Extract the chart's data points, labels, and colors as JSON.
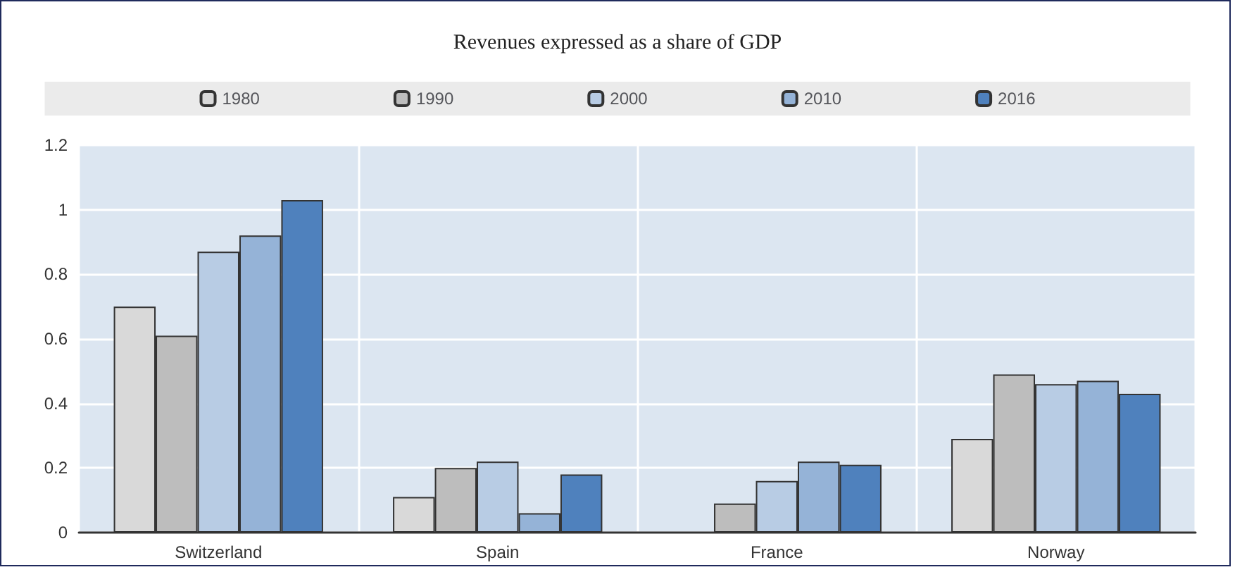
{
  "chart_data": {
    "type": "bar",
    "title": "Revenues expressed as a share of GDP",
    "categories": [
      "Switzerland",
      "Spain",
      "France",
      "Norway"
    ],
    "series": [
      {
        "name": "1980",
        "color": "#d9d9d9",
        "values": [
          0.7,
          0.11,
          null,
          0.29
        ]
      },
      {
        "name": "1990",
        "color": "#bdbdbd",
        "values": [
          0.61,
          0.2,
          0.09,
          0.49
        ]
      },
      {
        "name": "2000",
        "color": "#b8cce4",
        "values": [
          0.87,
          0.22,
          0.16,
          0.46
        ]
      },
      {
        "name": "2010",
        "color": "#95b3d7",
        "values": [
          0.92,
          0.06,
          0.22,
          0.47
        ]
      },
      {
        "name": "2016",
        "color": "#4f81bd",
        "values": [
          1.03,
          0.18,
          0.21,
          0.43
        ]
      }
    ],
    "ylim": [
      0,
      1.2
    ],
    "yticks": [
      0,
      0.2,
      0.4,
      0.6,
      0.8,
      1,
      1.2
    ],
    "grid": true,
    "legend": "top"
  }
}
